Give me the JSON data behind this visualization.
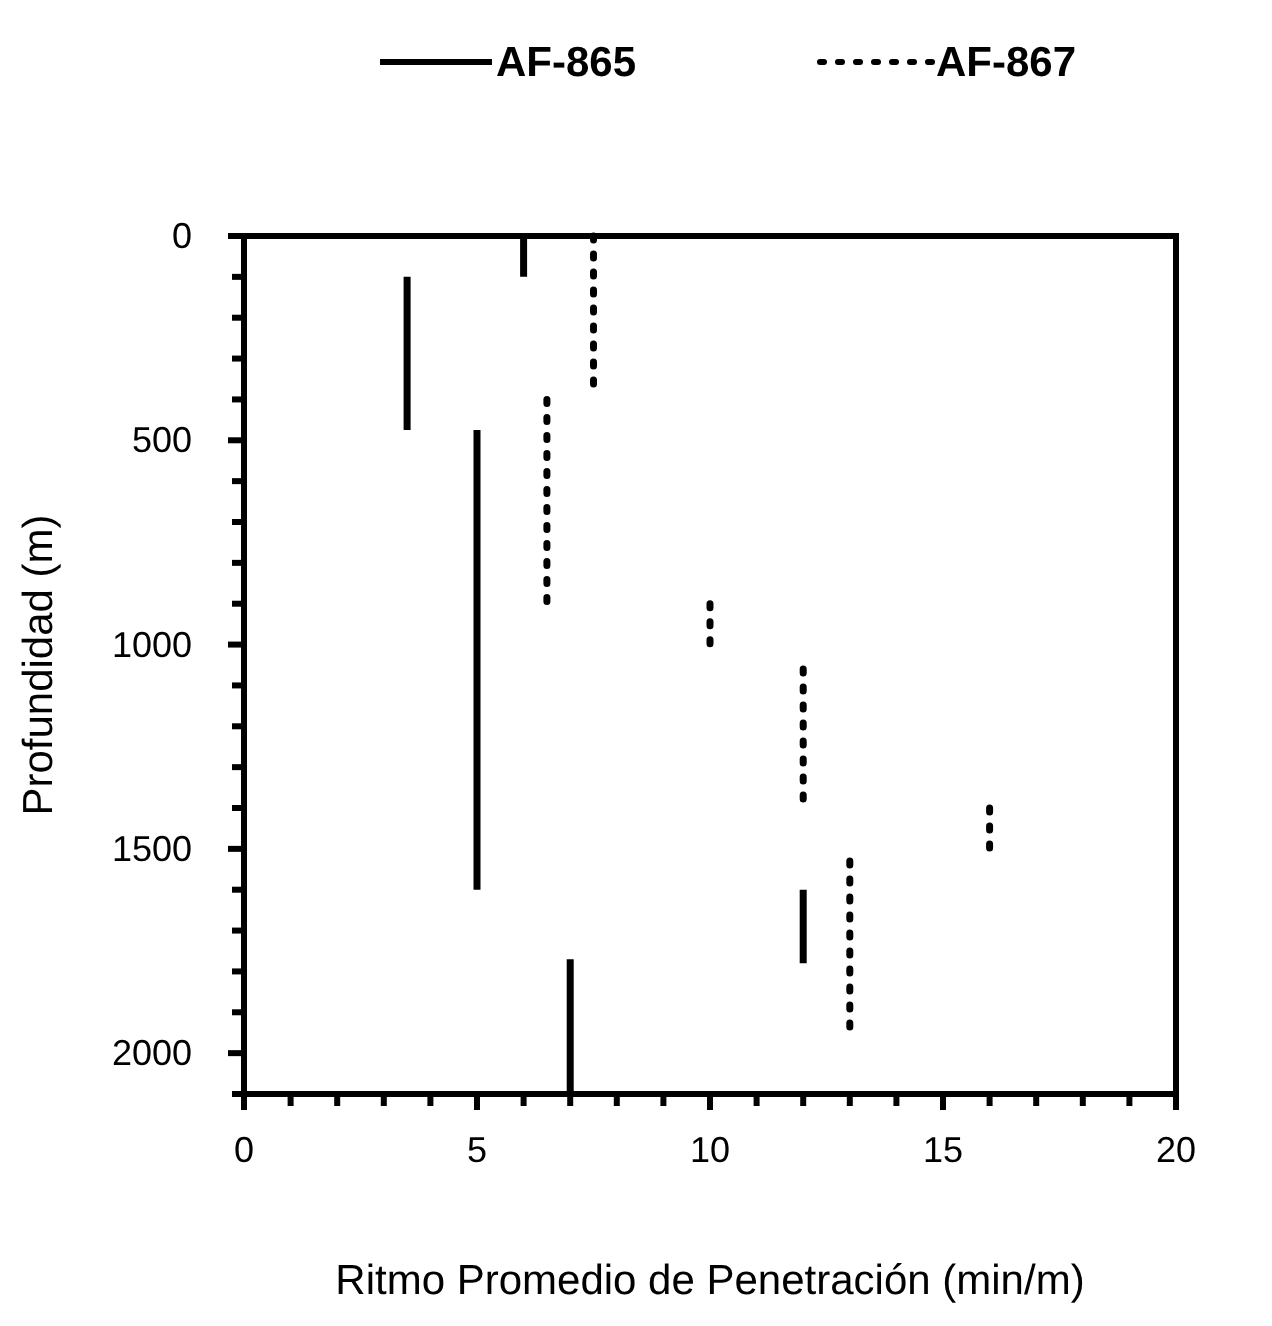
{
  "chart_data": {
    "type": "line",
    "xlabel": "Ritmo Promedio de Penetración (min/m)",
    "ylabel": "Profundidad (m)",
    "xlim": [
      0,
      20
    ],
    "ylim": [
      2100,
      0
    ],
    "xticks": [
      0,
      {
        "value": 1,
        "label": null
      },
      {
        "value": 2,
        "label": null
      },
      {
        "value": 3,
        "label": null
      },
      {
        "value": 4,
        "label": null
      },
      5,
      {
        "value": 6,
        "label": null
      },
      {
        "value": 7,
        "label": null
      },
      {
        "value": 8,
        "label": null
      },
      {
        "value": 9,
        "label": null
      },
      10,
      {
        "value": 11,
        "label": null
      },
      {
        "value": 12,
        "label": null
      },
      {
        "value": 13,
        "label": null
      },
      {
        "value": 14,
        "label": null
      },
      15,
      {
        "value": 16,
        "label": null
      },
      {
        "value": 17,
        "label": null
      },
      {
        "value": 18,
        "label": null
      },
      {
        "value": 19,
        "label": null
      },
      20
    ],
    "yticks": [
      0,
      {
        "value": 100,
        "label": null
      },
      {
        "value": 200,
        "label": null
      },
      {
        "value": 300,
        "label": null
      },
      {
        "value": 400,
        "label": null
      },
      500,
      {
        "value": 600,
        "label": null
      },
      {
        "value": 700,
        "label": null
      },
      {
        "value": 800,
        "label": null
      },
      {
        "value": 900,
        "label": null
      },
      1000,
      {
        "value": 1100,
        "label": null
      },
      {
        "value": 1200,
        "label": null
      },
      {
        "value": 1300,
        "label": null
      },
      {
        "value": 1400,
        "label": null
      },
      1500,
      {
        "value": 1600,
        "label": null
      },
      {
        "value": 1700,
        "label": null
      },
      {
        "value": 1800,
        "label": null
      },
      {
        "value": 1900,
        "label": null
      },
      2000,
      {
        "value": 2100,
        "label": null
      }
    ],
    "grid": false,
    "legend": "top",
    "series": [
      {
        "name": "AF-865",
        "color": "#000000",
        "line_style": "solid",
        "x": [
          6,
          6,
          null,
          3.5,
          3.5,
          null,
          5,
          5,
          null,
          7,
          7,
          null,
          12,
          12
        ],
        "values": [
          0,
          100,
          null,
          100,
          475,
          null,
          475,
          1600,
          null,
          1770,
          2100,
          null,
          1600,
          1780
        ]
      },
      {
        "name": "AF-867",
        "color": "#000000",
        "line_style": "dotted",
        "x": [
          7.5,
          7.5,
          null,
          6.5,
          6.5,
          null,
          10,
          10,
          null,
          12,
          12,
          null,
          16,
          16,
          null,
          13,
          13
        ],
        "values": [
          0,
          375,
          null,
          400,
          900,
          null,
          900,
          1030,
          null,
          1060,
          1380,
          null,
          1400,
          1530,
          null,
          1530,
          1960
        ]
      }
    ]
  }
}
